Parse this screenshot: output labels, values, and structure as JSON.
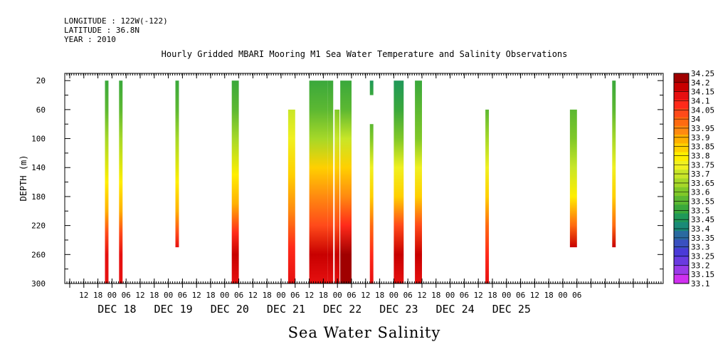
{
  "header": {
    "longitude": "LONGITUDE : 122W(-122)",
    "latitude": "LATITUDE : 36.8N",
    "year": "YEAR : 2010"
  },
  "chart_data": {
    "type": "heatmap",
    "title": "Hourly Gridded MBARI Mooring M1 Sea Water Temperature and Salinity Observations",
    "ylabel": "DEPTH (m)",
    "xlabel": "Sea Water Salinity",
    "y_reversed": true,
    "ylim": [
      300,
      10
    ],
    "y_ticks": [
      20,
      60,
      100,
      140,
      180,
      220,
      260,
      300
    ],
    "x_hour_labels": [
      "12",
      "18",
      "00",
      "06",
      "12",
      "18",
      "00",
      "06",
      "12",
      "18",
      "00",
      "06",
      "12",
      "18",
      "00",
      "06",
      "12",
      "18",
      "00",
      "06",
      "12",
      "18",
      "00",
      "06",
      "12",
      "18",
      "00",
      "06",
      "12",
      "18",
      "00",
      "06",
      "12",
      "18",
      "00",
      "06"
    ],
    "x_day_labels": [
      "DEC 18",
      "DEC 19",
      "DEC 20",
      "DEC 21",
      "DEC 22",
      "DEC 23",
      "DEC 24",
      "DEC 25"
    ],
    "colorbar": {
      "levels": [
        "34.25",
        "34.2",
        "34.15",
        "34.1",
        "34.05",
        "34",
        "33.95",
        "33.9",
        "33.85",
        "33.8",
        "33.75",
        "33.7",
        "33.65",
        "33.6",
        "33.55",
        "33.5",
        "33.45",
        "33.4",
        "33.35",
        "33.3",
        "33.25",
        "33.2",
        "33.15",
        "33.1"
      ],
      "colors": [
        "#a00000",
        "#c80000",
        "#e61010",
        "#ff2a1a",
        "#ff4a1a",
        "#ff6a10",
        "#ff8a10",
        "#ffb000",
        "#ffd000",
        "#ffee00",
        "#f0f020",
        "#c8e628",
        "#a6d828",
        "#80c828",
        "#5cb832",
        "#3aa83c",
        "#20985a",
        "#1a8a78",
        "#2a6aa0",
        "#3a50c0",
        "#4a3ad8",
        "#6a3ae0",
        "#9a3ae8",
        "#d030f0"
      ]
    },
    "columns": [
      {
        "x": 2.5,
        "w": 0.25,
        "top": 20,
        "bottom": 300,
        "profile": [
          [
            20,
            33.5
          ],
          [
            60,
            33.55
          ],
          [
            100,
            33.65
          ],
          [
            160,
            33.8
          ],
          [
            200,
            33.9
          ],
          [
            230,
            34.05
          ],
          [
            260,
            34.15
          ],
          [
            300,
            34.15
          ]
        ]
      },
      {
        "x": 3.5,
        "w": 0.25,
        "top": 20,
        "bottom": 300,
        "profile": [
          [
            20,
            33.5
          ],
          [
            60,
            33.55
          ],
          [
            100,
            33.65
          ],
          [
            160,
            33.8
          ],
          [
            200,
            33.9
          ],
          [
            230,
            34.05
          ],
          [
            260,
            34.15
          ],
          [
            300,
            34.15
          ]
        ]
      },
      {
        "x": 7.5,
        "w": 0.25,
        "top": 20,
        "bottom": 250,
        "profile": [
          [
            20,
            33.5
          ],
          [
            60,
            33.55
          ],
          [
            100,
            33.65
          ],
          [
            160,
            33.8
          ],
          [
            200,
            33.9
          ],
          [
            230,
            34.05
          ],
          [
            250,
            34.15
          ]
        ]
      },
      {
        "x": 11.5,
        "w": 0.5,
        "top": 20,
        "bottom": 300,
        "profile": [
          [
            20,
            33.5
          ],
          [
            60,
            33.55
          ],
          [
            100,
            33.65
          ],
          [
            150,
            33.8
          ],
          [
            190,
            33.9
          ],
          [
            230,
            34.1
          ],
          [
            260,
            34.2
          ],
          [
            300,
            34.15
          ]
        ]
      },
      {
        "x": 15.5,
        "w": 0.5,
        "top": 60,
        "bottom": 300,
        "profile": [
          [
            60,
            33.7
          ],
          [
            100,
            33.75
          ],
          [
            150,
            33.85
          ],
          [
            200,
            33.95
          ],
          [
            250,
            34.1
          ],
          [
            300,
            34.15
          ]
        ]
      },
      {
        "x": 17,
        "w": 1.3,
        "top": 20,
        "bottom": 300,
        "profile": [
          [
            20,
            33.5
          ],
          [
            60,
            33.55
          ],
          [
            100,
            33.65
          ],
          [
            140,
            33.85
          ],
          [
            180,
            33.95
          ],
          [
            220,
            34.05
          ],
          [
            260,
            34.2
          ],
          [
            300,
            34.15
          ]
        ]
      },
      {
        "x": 18.3,
        "w": 0.4,
        "top": 20,
        "bottom": 300,
        "profile": [
          [
            20,
            33.5
          ],
          [
            60,
            33.55
          ],
          [
            100,
            33.65
          ],
          [
            140,
            33.85
          ],
          [
            180,
            33.95
          ],
          [
            220,
            34.05
          ],
          [
            260,
            34.2
          ],
          [
            300,
            34.15
          ]
        ]
      },
      {
        "x": 18.8,
        "w": 0.35,
        "top": 60,
        "bottom": 300,
        "profile": [
          [
            60,
            33.6
          ],
          [
            100,
            33.7
          ],
          [
            140,
            33.85
          ],
          [
            180,
            33.95
          ],
          [
            220,
            34.05
          ],
          [
            260,
            34.2
          ],
          [
            300,
            34.15
          ]
        ]
      },
      {
        "x": 19.2,
        "w": 0.8,
        "top": 20,
        "bottom": 300,
        "profile": [
          [
            20,
            33.5
          ],
          [
            60,
            33.55
          ],
          [
            100,
            33.7
          ],
          [
            140,
            33.85
          ],
          [
            180,
            33.95
          ],
          [
            220,
            34.1
          ],
          [
            260,
            34.25
          ],
          [
            300,
            34.25
          ]
        ]
      },
      {
        "x": 21.3,
        "w": 0.25,
        "top": 20,
        "bottom": 40,
        "profile": [
          [
            20,
            33.45
          ],
          [
            40,
            33.5
          ]
        ]
      },
      {
        "x": 21.3,
        "w": 0.25,
        "top": 80,
        "bottom": 300,
        "profile": [
          [
            80,
            33.55
          ],
          [
            100,
            33.6
          ],
          [
            140,
            33.75
          ],
          [
            180,
            33.85
          ],
          [
            220,
            34.0
          ],
          [
            260,
            34.1
          ],
          [
            300,
            34.15
          ]
        ]
      },
      {
        "x": 23.0,
        "w": 0.7,
        "top": 20,
        "bottom": 300,
        "profile": [
          [
            20,
            33.45
          ],
          [
            60,
            33.5
          ],
          [
            100,
            33.6
          ],
          [
            140,
            33.75
          ],
          [
            180,
            33.85
          ],
          [
            220,
            34.05
          ],
          [
            260,
            34.2
          ],
          [
            300,
            34.15
          ]
        ]
      },
      {
        "x": 24.5,
        "w": 0.5,
        "top": 20,
        "bottom": 300,
        "profile": [
          [
            20,
            33.5
          ],
          [
            60,
            33.55
          ],
          [
            100,
            33.6
          ],
          [
            140,
            33.75
          ],
          [
            180,
            33.85
          ],
          [
            220,
            34.05
          ],
          [
            260,
            34.2
          ],
          [
            300,
            34.15
          ]
        ]
      },
      {
        "x": 29.5,
        "w": 0.25,
        "top": 60,
        "bottom": 300,
        "profile": [
          [
            60,
            33.55
          ],
          [
            100,
            33.65
          ],
          [
            140,
            33.75
          ],
          [
            180,
            33.85
          ],
          [
            220,
            34.0
          ],
          [
            260,
            34.1
          ],
          [
            300,
            34.15
          ]
        ]
      },
      {
        "x": 35.5,
        "w": 0.5,
        "top": 60,
        "bottom": 250,
        "profile": [
          [
            60,
            33.55
          ],
          [
            100,
            33.6
          ],
          [
            140,
            33.7
          ],
          [
            180,
            33.8
          ],
          [
            220,
            34.0
          ],
          [
            250,
            34.2
          ]
        ]
      },
      {
        "x": 38.5,
        "w": 0.25,
        "top": 20,
        "bottom": 250,
        "profile": [
          [
            20,
            33.5
          ],
          [
            60,
            33.55
          ],
          [
            100,
            33.65
          ],
          [
            140,
            33.75
          ],
          [
            180,
            33.85
          ],
          [
            220,
            34.0
          ],
          [
            250,
            34.2
          ]
        ]
      }
    ]
  }
}
